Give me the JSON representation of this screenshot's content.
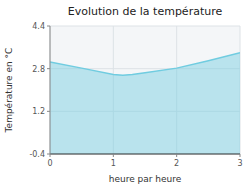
{
  "chart_data": {
    "type": "area",
    "title": "Evolution de la température",
    "x_label": "heure par heure",
    "y_label": "Température en °C",
    "x": [
      0,
      0.5,
      1.0,
      1.15,
      1.3,
      1.5,
      2.0,
      2.5,
      3.0
    ],
    "values": [
      3.05,
      2.82,
      2.58,
      2.55,
      2.58,
      2.65,
      2.82,
      3.1,
      3.4
    ],
    "xlim": [
      0,
      3
    ],
    "ylim": [
      -0.4,
      4.4
    ],
    "xticks": [
      0,
      1,
      2,
      3
    ],
    "yticks": [
      -0.4,
      1.2,
      2.8,
      4.4
    ],
    "color": "#70cce0",
    "grid": true
  }
}
